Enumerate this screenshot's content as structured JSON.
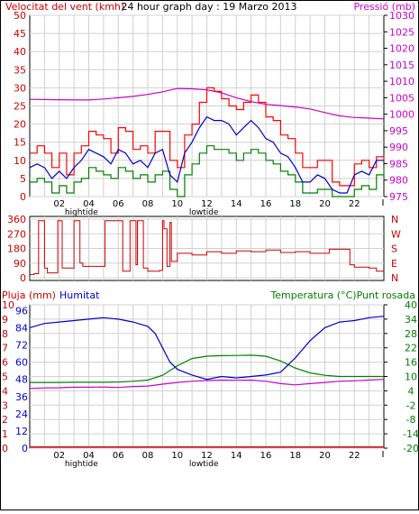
{
  "chart_data": [
    {
      "type": "line",
      "title": "24 hour graph day : 19 Marzo 2013",
      "ylabel_left": "Velocitat del vent (kmh)",
      "ylabel_right": "Pressió (mb)",
      "ylim_left": [
        0,
        50
      ],
      "ylim_right": [
        975,
        1030
      ],
      "yticks_left": [
        0,
        5,
        10,
        15,
        20,
        25,
        30,
        35,
        40,
        45,
        50
      ],
      "yticks_right": [
        975,
        980,
        985,
        990,
        995,
        1000,
        1005,
        1010,
        1015,
        1020,
        1025,
        1030
      ],
      "xlim": [
        0,
        24
      ],
      "xticks": [
        "02",
        "04",
        "06",
        "08",
        "10",
        "12",
        "14",
        "16",
        "18",
        "20",
        "22"
      ],
      "tide_labels": [
        {
          "text": "hightide",
          "x": 3.5
        },
        {
          "text": "lowtide",
          "x": 11.8
        }
      ],
      "grid": true,
      "colors": {
        "gust": "#ff0000",
        "avg": "#0000cc",
        "min": "#008000",
        "pressure": "#cc00cc"
      },
      "pressure": {
        "name": "Pressió",
        "x": [
          0,
          2,
          4,
          5,
          6,
          7,
          8,
          9,
          10,
          11,
          12,
          13,
          14,
          15,
          16,
          17,
          18,
          19,
          20,
          21,
          22,
          23,
          24
        ],
        "y": [
          1004.5,
          1004.4,
          1004.3,
          1004.6,
          1005.0,
          1005.4,
          1006.0,
          1006.8,
          1007.8,
          1007.7,
          1007.4,
          1006.5,
          1005.0,
          1003.8,
          1003.0,
          1002.6,
          1002.2,
          1001.6,
          1000.5,
          999.5,
          999.0,
          998.8,
          998.6
        ]
      },
      "wind": {
        "x": [
          0,
          0.5,
          1,
          1.5,
          2,
          2.5,
          3,
          3.5,
          4,
          4.5,
          5,
          5.5,
          6,
          6.5,
          7,
          7.5,
          8,
          8.5,
          9,
          9.5,
          10,
          10.5,
          11,
          11.5,
          12,
          12.5,
          13,
          13.5,
          14,
          14.5,
          15,
          15.5,
          16,
          16.5,
          17,
          17.5,
          18,
          18.5,
          19,
          19.5,
          20,
          20.5,
          21,
          21.5,
          22,
          22.5,
          23,
          23.5,
          24
        ],
        "gust": [
          12,
          14,
          12,
          8,
          12,
          6,
          12,
          14,
          18,
          17,
          16,
          12,
          19,
          18,
          13,
          14,
          12,
          18,
          18,
          10,
          8,
          17,
          20,
          26,
          30,
          29,
          27,
          25,
          24,
          26,
          28,
          26,
          22,
          21,
          17,
          16,
          12,
          8,
          8,
          10,
          10,
          4,
          3,
          3,
          9,
          10,
          8,
          11,
          10
        ],
        "avg": [
          8,
          9,
          8,
          5,
          7,
          5,
          8,
          10,
          13,
          12,
          11,
          9,
          13,
          12,
          9,
          10,
          8,
          12,
          13,
          6,
          4,
          12,
          15,
          19,
          22,
          21,
          21,
          20,
          17,
          19,
          21,
          19,
          16,
          15,
          12,
          11,
          8,
          4,
          4,
          6,
          5,
          2,
          1,
          1,
          6,
          7,
          6,
          10,
          10
        ],
        "min": [
          4,
          5,
          4,
          1,
          3,
          1,
          4,
          5,
          8,
          7,
          6,
          5,
          8,
          7,
          5,
          6,
          4,
          6,
          7,
          2,
          0,
          6,
          9,
          12,
          14,
          13,
          13,
          12,
          10,
          12,
          13,
          12,
          10,
          9,
          7,
          6,
          4,
          1,
          1,
          2,
          2,
          0,
          0,
          0,
          2,
          3,
          2,
          6,
          8
        ]
      }
    },
    {
      "type": "line",
      "ylim": [
        0,
        360
      ],
      "yticks": [
        0,
        90,
        180,
        270,
        360
      ],
      "compass_labels": [
        "N",
        "W",
        "S",
        "E",
        "N"
      ],
      "xlim": [
        0,
        24
      ],
      "grid": true,
      "colors": {
        "direction": "#cc0000"
      },
      "direction": {
        "x": [
          0,
          0.3,
          0.6,
          0.8,
          1.0,
          1.2,
          1.8,
          1.9,
          2.0,
          2.2,
          2.8,
          3.0,
          3.2,
          3.4,
          3.6,
          5.0,
          5.1,
          5.3,
          6.2,
          6.3,
          6.7,
          6.8,
          7.0,
          7.2,
          7.3,
          7.6,
          7.7,
          8.0,
          8.2,
          8.8,
          9.0,
          9.1,
          9.3,
          9.5,
          9.6,
          10,
          11,
          12,
          13,
          14,
          15,
          16,
          17,
          18,
          19,
          20,
          20.3,
          20.6,
          21.5,
          21.7,
          22,
          23,
          23.5,
          24
        ],
        "y": [
          20,
          25,
          350,
          350,
          60,
          30,
          30,
          350,
          350,
          60,
          60,
          350,
          350,
          90,
          70,
          70,
          350,
          350,
          350,
          40,
          40,
          350,
          350,
          80,
          350,
          350,
          60,
          40,
          40,
          45,
          350,
          300,
          70,
          340,
          100,
          150,
          140,
          160,
          150,
          165,
          160,
          170,
          155,
          160,
          150,
          150,
          175,
          175,
          175,
          80,
          65,
          60,
          40,
          40
        ]
      }
    },
    {
      "type": "line",
      "ylabel_left_outer": "Pluja (mm)",
      "ylabel_left_inner": "Humitat",
      "ylabel_right": "Temperatura (°C)Punt rosada",
      "ylim_rain": [
        0,
        10
      ],
      "yticks_rain": [
        0,
        1,
        2,
        3,
        4,
        5,
        6,
        7,
        8,
        9,
        10
      ],
      "ylim_humidity": [
        0,
        100
      ],
      "yticks_humidity": [
        0,
        12,
        24,
        36,
        48,
        60,
        72,
        84,
        96
      ],
      "ylim_temp": [
        -20,
        40
      ],
      "yticks_temp": [
        -20,
        -14,
        -8,
        -2,
        4,
        10,
        16,
        22,
        28,
        34,
        40
      ],
      "xlim": [
        0,
        24
      ],
      "xticks": [
        "02",
        "04",
        "06",
        "08",
        "10",
        "12",
        "14",
        "16",
        "18",
        "20",
        "22"
      ],
      "tide_labels": [
        {
          "text": "hightide",
          "x": 3.5
        },
        {
          "text": "lowtide",
          "x": 11.8
        }
      ],
      "grid": true,
      "colors": {
        "rain": "#cc0000",
        "humidity": "#0000cc",
        "temperature": "#008000",
        "dewpoint": "#cc00cc"
      },
      "rain": {
        "x": [
          0,
          24
        ],
        "y": [
          0,
          0
        ]
      },
      "humidity": {
        "x": [
          0,
          1,
          2,
          3,
          4,
          5,
          6,
          7,
          8,
          8.5,
          9,
          9.5,
          10,
          11,
          12,
          13,
          14,
          15,
          16,
          17,
          18,
          19,
          20,
          21,
          22,
          23,
          24
        ],
        "y": [
          84,
          87,
          88,
          89,
          90,
          91,
          90,
          88,
          85,
          80,
          70,
          60,
          55,
          51,
          48,
          50,
          49,
          50,
          51,
          53,
          63,
          75,
          84,
          88,
          89,
          91,
          92
        ]
      },
      "temperature": {
        "x": [
          0,
          1,
          2,
          3,
          4,
          5,
          6,
          7,
          8,
          9,
          10,
          11,
          12,
          13,
          14,
          15,
          16,
          17,
          18,
          19,
          20,
          21,
          22,
          23,
          24
        ],
        "y": [
          7.5,
          7.5,
          7.5,
          7.6,
          7.6,
          7.6,
          7.7,
          8.0,
          8.5,
          10.5,
          14.5,
          17.5,
          18.5,
          18.7,
          18.8,
          18.9,
          18.5,
          16.5,
          13.5,
          11.5,
          10.5,
          10.0,
          10.0,
          10.0,
          10.0
        ]
      },
      "dewpoint": {
        "x": [
          0,
          1,
          2,
          3,
          4,
          5,
          6,
          7,
          8,
          9,
          10,
          11,
          12,
          13,
          14,
          15,
          16,
          17,
          18,
          19,
          20,
          21,
          22,
          23,
          24
        ],
        "y": [
          5.0,
          5.2,
          5.3,
          5.5,
          5.5,
          5.6,
          5.4,
          5.8,
          6.0,
          6.8,
          7.5,
          8.0,
          8.3,
          8.5,
          8.4,
          8.5,
          8.0,
          7.0,
          6.5,
          7.0,
          7.5,
          8.0,
          8.2,
          8.5,
          8.8
        ]
      }
    }
  ]
}
